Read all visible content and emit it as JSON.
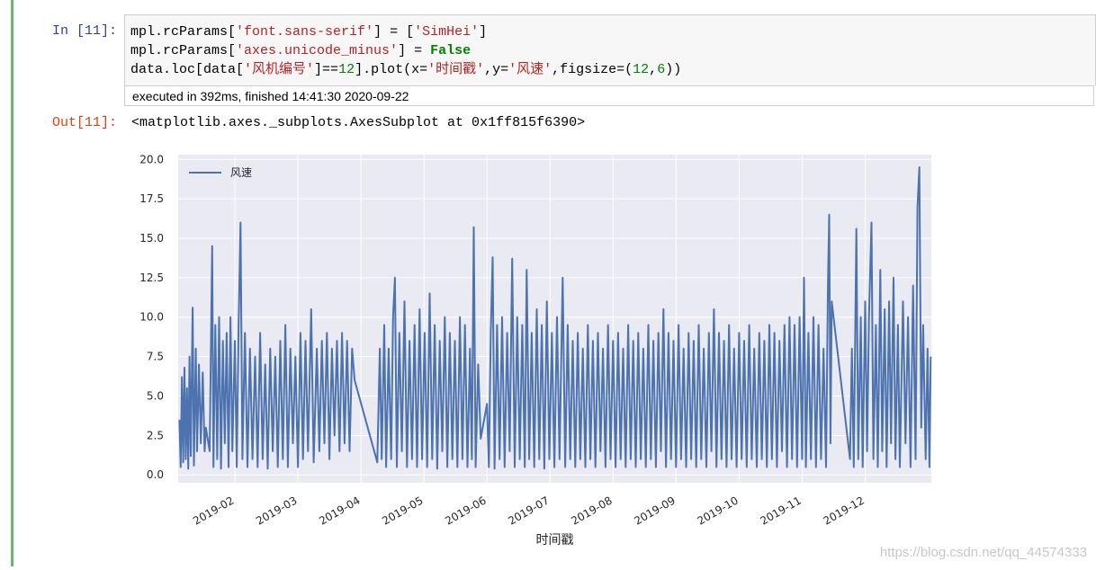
{
  "notebook": {
    "input_prompt": "In  [11]:",
    "code": [
      [
        [
          "mpl.rcParams[",
          "n"
        ],
        [
          "'font.sans-serif'",
          "s"
        ],
        [
          "] = [",
          "n"
        ],
        [
          "'SimHei'",
          "s"
        ],
        [
          "]",
          "n"
        ]
      ],
      [
        [
          "mpl.rcParams[",
          "n"
        ],
        [
          "'axes.unicode_minus'",
          "s"
        ],
        [
          "] = ",
          "n"
        ],
        [
          "False",
          "k"
        ]
      ],
      [
        [
          "data.loc[data[",
          "n"
        ],
        [
          "'风机编号'",
          "s"
        ],
        [
          "]==",
          "n"
        ],
        [
          "12",
          "m"
        ],
        [
          "].plot(x=",
          "n"
        ],
        [
          "'时间戳'",
          "s"
        ],
        [
          ",y=",
          "n"
        ],
        [
          "'风速'",
          "s"
        ],
        [
          ",figsize=(",
          "n"
        ],
        [
          "12",
          "m"
        ],
        [
          ",",
          "n"
        ],
        [
          "6",
          "m"
        ],
        [
          "))",
          "n"
        ]
      ]
    ],
    "execution_info": "executed in 392ms, finished 14:41:30 2020-09-22",
    "output_prompt": "Out[11]:",
    "output_text": "<matplotlib.axes._subplots.AxesSubplot at 0x1ff815f6390>",
    "watermark": "https://blog.csdn.net/qq_44574333"
  },
  "chart_data": {
    "type": "line",
    "xlabel": "时间戳",
    "legend": "upper left",
    "grid": true,
    "xlim": [
      1.1,
      13.05
    ],
    "ylim": [
      -0.5,
      20.3
    ],
    "xticks": [
      {
        "value": 2,
        "label": "2019-02"
      },
      {
        "value": 3,
        "label": "2019-03"
      },
      {
        "value": 4,
        "label": "2019-04"
      },
      {
        "value": 5,
        "label": "2019-05"
      },
      {
        "value": 6,
        "label": "2019-06"
      },
      {
        "value": 7,
        "label": "2019-07"
      },
      {
        "value": 8,
        "label": "2019-08"
      },
      {
        "value": 9,
        "label": "2019-09"
      },
      {
        "value": 10,
        "label": "2019-10"
      },
      {
        "value": 11,
        "label": "2019-11"
      },
      {
        "value": 12,
        "label": "2019-12"
      }
    ],
    "yticks": [
      {
        "value": 0,
        "label": "0.0"
      },
      {
        "value": 2.5,
        "label": "2.5"
      },
      {
        "value": 5,
        "label": "5.0"
      },
      {
        "value": 7.5,
        "label": "7.5"
      },
      {
        "value": 10,
        "label": "10.0"
      },
      {
        "value": 12.5,
        "label": "12.5"
      },
      {
        "value": 15,
        "label": "15.0"
      },
      {
        "value": 17.5,
        "label": "17.5"
      },
      {
        "value": 20,
        "label": "20.0"
      }
    ],
    "x": [
      1.12,
      1.14,
      1.16,
      1.18,
      1.2,
      1.22,
      1.24,
      1.26,
      1.28,
      1.3,
      1.33,
      1.35,
      1.38,
      1.4,
      1.43,
      1.46,
      1.49,
      1.52,
      1.54,
      1.6,
      1.62,
      1.64,
      1.66,
      1.69,
      1.72,
      1.75,
      1.78,
      1.81,
      1.84,
      1.87,
      1.9,
      1.93,
      1.96,
      2.0,
      2.03,
      2.06,
      2.09,
      2.12,
      2.16,
      2.2,
      2.24,
      2.28,
      2.32,
      2.36,
      2.4,
      2.44,
      2.48,
      2.52,
      2.56,
      2.6,
      2.64,
      2.68,
      2.72,
      2.76,
      2.8,
      2.84,
      2.88,
      2.92,
      2.96,
      3.0,
      3.04,
      3.08,
      3.12,
      3.16,
      3.21,
      3.25,
      3.3,
      3.34,
      3.38,
      3.42,
      3.46,
      3.5,
      3.54,
      3.58,
      3.62,
      3.66,
      3.7,
      3.74,
      3.78,
      3.82,
      3.86,
      3.9,
      4.26,
      4.3,
      4.33,
      4.37,
      4.4,
      4.44,
      4.48,
      4.51,
      4.54,
      4.57,
      4.61,
      4.65,
      4.69,
      4.73,
      4.77,
      4.81,
      4.85,
      4.89,
      4.93,
      4.97,
      5.01,
      5.05,
      5.09,
      5.13,
      5.17,
      5.21,
      5.25,
      5.29,
      5.33,
      5.37,
      5.41,
      5.45,
      5.49,
      5.53,
      5.57,
      5.61,
      5.65,
      5.69,
      5.73,
      5.76,
      5.79,
      5.82,
      5.86,
      5.9,
      6.0,
      6.03,
      6.06,
      6.09,
      6.12,
      6.16,
      6.2,
      6.24,
      6.28,
      6.32,
      6.36,
      6.4,
      6.44,
      6.48,
      6.52,
      6.56,
      6.6,
      6.63,
      6.67,
      6.71,
      6.75,
      6.79,
      6.83,
      6.87,
      6.91,
      6.95,
      6.99,
      7.03,
      7.07,
      7.11,
      7.15,
      7.2,
      7.24,
      7.28,
      7.32,
      7.36,
      7.4,
      7.44,
      7.48,
      7.52,
      7.56,
      7.6,
      7.64,
      7.68,
      7.72,
      7.76,
      7.8,
      7.84,
      7.88,
      7.92,
      7.96,
      8.0,
      8.04,
      8.08,
      8.12,
      8.16,
      8.2,
      8.24,
      8.28,
      8.32,
      8.36,
      8.4,
      8.44,
      8.48,
      8.52,
      8.56,
      8.6,
      8.64,
      8.68,
      8.72,
      8.76,
      8.8,
      8.84,
      8.88,
      8.92,
      8.96,
      9.0,
      9.04,
      9.08,
      9.12,
      9.16,
      9.2,
      9.24,
      9.28,
      9.32,
      9.36,
      9.4,
      9.44,
      9.48,
      9.52,
      9.56,
      9.6,
      9.64,
      9.68,
      9.72,
      9.76,
      9.8,
      9.84,
      9.88,
      9.92,
      9.96,
      10.0,
      10.04,
      10.08,
      10.12,
      10.16,
      10.2,
      10.24,
      10.28,
      10.32,
      10.36,
      10.4,
      10.44,
      10.48,
      10.52,
      10.56,
      10.6,
      10.64,
      10.68,
      10.72,
      10.76,
      10.8,
      10.84,
      10.88,
      10.92,
      10.96,
      11.0,
      11.03,
      11.06,
      11.1,
      11.14,
      11.18,
      11.22,
      11.26,
      11.3,
      11.34,
      11.38,
      11.41,
      11.43,
      11.45,
      11.47,
      11.76,
      11.79,
      11.82,
      11.86,
      11.89,
      11.93,
      11.96,
      12.0,
      12.03,
      12.06,
      12.1,
      12.13,
      12.17,
      12.2,
      12.24,
      12.27,
      12.31,
      12.34,
      12.38,
      12.41,
      12.45,
      12.48,
      12.52,
      12.55,
      12.6,
      12.64,
      12.68,
      12.72,
      12.76,
      12.8,
      12.83,
      12.86,
      12.89,
      12.92,
      12.96,
      12.99,
      13.02,
      13.04
    ],
    "series": [
      {
        "name": "风速",
        "color": "#4c72b0",
        "values": [
          3.5,
          0.5,
          6.2,
          0.8,
          6.8,
          1.0,
          5.5,
          0.4,
          7.5,
          1.2,
          10.6,
          0.6,
          8.0,
          1.5,
          7.0,
          2.0,
          6.5,
          1.5,
          3.0,
          1.5,
          8.0,
          14.5,
          0.5,
          9.5,
          1.0,
          10.0,
          0.4,
          8.5,
          2.0,
          9.0,
          0.5,
          10.0,
          1.5,
          8.5,
          0.5,
          9.5,
          16.0,
          1.0,
          9.0,
          0.5,
          8.0,
          1.0,
          7.5,
          0.5,
          9.0,
          1.0,
          7.0,
          0.4,
          8.0,
          1.5,
          7.5,
          0.5,
          8.5,
          1.0,
          9.5,
          0.5,
          8.0,
          2.0,
          7.5,
          0.5,
          9.0,
          1.0,
          8.5,
          1.5,
          10.5,
          0.8,
          8.0,
          1.5,
          8.5,
          2.0,
          9.0,
          1.0,
          8.0,
          2.5,
          8.5,
          1.5,
          9.0,
          2.0,
          8.5,
          1.5,
          8.0,
          6.0,
          0.8,
          8.0,
          1.0,
          9.5,
          0.5,
          8.0,
          1.0,
          10.0,
          12.5,
          0.5,
          9.0,
          1.5,
          11.0,
          0.5,
          8.5,
          1.0,
          9.5,
          0.5,
          10.5,
          1.0,
          9.0,
          0.5,
          11.5,
          1.0,
          9.5,
          0.4,
          8.5,
          1.5,
          10.0,
          0.5,
          9.0,
          1.0,
          8.5,
          0.5,
          10.0,
          1.0,
          9.5,
          0.5,
          8.0,
          1.0,
          15.7,
          0.5,
          7.0,
          2.3,
          4.5,
          0.5,
          9.0,
          13.8,
          0.4,
          9.5,
          1.0,
          10.0,
          0.5,
          9.0,
          1.5,
          13.7,
          0.5,
          10.0,
          1.0,
          9.5,
          0.5,
          13.0,
          1.0,
          9.0,
          0.5,
          10.5,
          1.0,
          9.5,
          0.4,
          11.0,
          1.0,
          9.0,
          0.5,
          10.0,
          1.0,
          12.5,
          0.5,
          9.5,
          1.0,
          8.5,
          0.5,
          9.0,
          1.0,
          8.0,
          0.5,
          9.5,
          1.0,
          8.5,
          0.5,
          9.0,
          1.5,
          8.0,
          0.5,
          9.5,
          1.0,
          8.5,
          0.5,
          9.0,
          1.0,
          8.0,
          0.5,
          9.5,
          1.0,
          8.5,
          0.5,
          9.0,
          1.0,
          8.0,
          0.5,
          9.5,
          1.0,
          8.5,
          0.5,
          9.0,
          1.5,
          10.5,
          0.5,
          9.0,
          1.0,
          8.5,
          0.5,
          9.5,
          1.0,
          8.0,
          0.5,
          9.0,
          1.0,
          8.5,
          0.5,
          9.5,
          1.0,
          8.0,
          0.5,
          9.0,
          1.5,
          10.5,
          0.5,
          9.0,
          1.0,
          8.5,
          0.5,
          9.5,
          1.0,
          8.0,
          0.5,
          9.0,
          1.0,
          8.5,
          0.5,
          9.5,
          1.0,
          8.0,
          0.5,
          9.0,
          1.0,
          8.5,
          0.5,
          9.5,
          1.0,
          9.0,
          0.5,
          8.5,
          1.5,
          9.5,
          0.5,
          10.0,
          1.0,
          9.5,
          0.5,
          10.0,
          1.0,
          12.5,
          0.5,
          9.0,
          1.0,
          10.0,
          0.5,
          9.5,
          1.0,
          8.0,
          0.5,
          12.0,
          16.5,
          2.0,
          11.0,
          1.0,
          8.0,
          0.5,
          15.6,
          1.0,
          10.0,
          0.5,
          11.0,
          1.5,
          10.0,
          16.0,
          1.0,
          9.5,
          0.5,
          13.0,
          1.5,
          10.5,
          0.5,
          11.0,
          2.0,
          12.5,
          1.0,
          9.5,
          0.5,
          11.0,
          2.0,
          10.0,
          0.5,
          12.0,
          1.0,
          17.0,
          19.5,
          3.0,
          9.5,
          1.0,
          8.0,
          0.5,
          7.5
        ]
      }
    ]
  }
}
